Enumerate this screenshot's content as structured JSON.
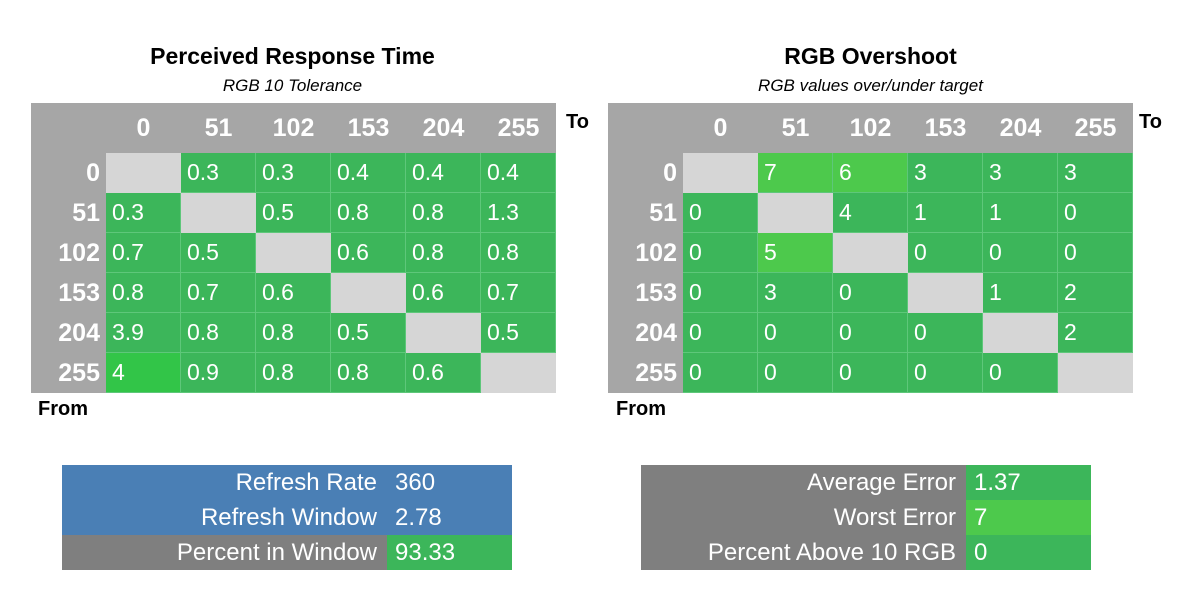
{
  "chart_data": [
    {
      "type": "table",
      "title": "Perceived Response Time",
      "subtitle": "RGB 10 Tolerance",
      "to_label": "To",
      "from_label": "From",
      "columns": [
        "0",
        "51",
        "102",
        "153",
        "204",
        "255"
      ],
      "rows": [
        "0",
        "51",
        "102",
        "153",
        "204",
        "255"
      ],
      "values": [
        [
          null,
          "0.3",
          "0.3",
          "0.4",
          "0.4",
          "0.4"
        ],
        [
          "0.3",
          null,
          "0.5",
          "0.8",
          "0.8",
          "1.3"
        ],
        [
          "0.7",
          "0.5",
          null,
          "0.6",
          "0.8",
          "0.8"
        ],
        [
          "0.8",
          "0.7",
          "0.6",
          null,
          "0.6",
          "0.7"
        ],
        [
          "3.9",
          "0.8",
          "0.8",
          "0.5",
          null,
          "0.5"
        ],
        [
          "4",
          "0.9",
          "0.8",
          "0.8",
          "0.6",
          null
        ]
      ],
      "highlight": [
        [
          5,
          0
        ]
      ]
    },
    {
      "type": "table",
      "title": "RGB Overshoot",
      "subtitle": "RGB values over/under target",
      "to_label": "To",
      "from_label": "From",
      "columns": [
        "0",
        "51",
        "102",
        "153",
        "204",
        "255"
      ],
      "rows": [
        "0",
        "51",
        "102",
        "153",
        "204",
        "255"
      ],
      "values": [
        [
          null,
          "7",
          "6",
          "3",
          "3",
          "3"
        ],
        [
          "0",
          null,
          "4",
          "1",
          "1",
          "0"
        ],
        [
          "0",
          "5",
          null,
          "0",
          "0",
          "0"
        ],
        [
          "0",
          "3",
          "0",
          null,
          "1",
          "2"
        ],
        [
          "0",
          "0",
          "0",
          "0",
          null,
          "2"
        ],
        [
          "0",
          "0",
          "0",
          "0",
          "0",
          null
        ]
      ],
      "highlight": [
        [
          0,
          1
        ],
        [
          0,
          2
        ],
        [
          2,
          1
        ]
      ]
    }
  ],
  "stats_left": [
    {
      "label": "Refresh Rate",
      "value": "360",
      "style": "blue"
    },
    {
      "label": "Refresh Window",
      "value": "2.78",
      "style": "blue"
    },
    {
      "label": "Percent in Window",
      "value": "93.33",
      "style": "gray"
    }
  ],
  "stats_right": [
    {
      "label": "Average Error",
      "value": "1.37",
      "style": "gray"
    },
    {
      "label": "Worst Error",
      "value": "7",
      "style": "gray",
      "value_style": "lime"
    },
    {
      "label": "Percent Above 10 RGB",
      "value": "0",
      "style": "gray"
    }
  ],
  "colors": {
    "cell_green": "#3cb65a",
    "diagonal": "#d6d6d6",
    "header": "#a6a6a6",
    "blue": "#4a7fb5",
    "gray": "#7f7f7f",
    "highlight": "#4dc94c"
  }
}
